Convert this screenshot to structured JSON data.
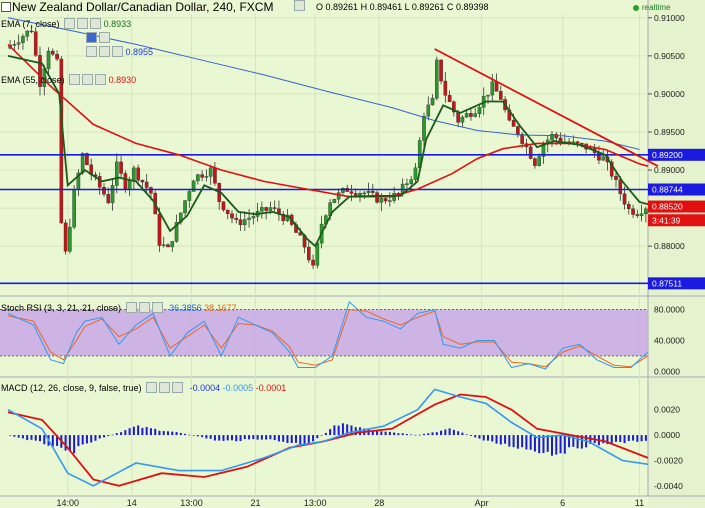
{
  "header": {
    "title": "New Zealand Dollar/Canadian Dollar, 240, FXCM",
    "ohlc": {
      "o_label": "O",
      "o": "0.89261",
      "h_label": "H",
      "h": "0.89461",
      "l_label": "L",
      "l": "0.89261",
      "c_label": "C",
      "c": "0.89398"
    },
    "realtime": "realtime"
  },
  "indicators": {
    "ema7": {
      "label": "EMA (7, close)",
      "value": "0.8933",
      "color": "#1a6d1a"
    },
    "ind2_value": "0.8955",
    "ema55": {
      "label": "EMA (55, close)",
      "value": "0.8930",
      "color": "#e01010"
    },
    "stoch": {
      "label": "Stoch RSI (3, 3, 21, 21, close)",
      "k": "36.3856",
      "d": "38.1677"
    },
    "macd": {
      "label": "MACD (12, 26, close, 9, false, true)",
      "hist": "-0.0004",
      "macd": "-0.0005",
      "signal": "-0.0001"
    }
  },
  "colors": {
    "bull": "#2a9a2a",
    "bear": "#c01818",
    "ema7": "#1a5a1a",
    "ema55": "#e01010",
    "ma": "#3366cc",
    "hline": "#1a1ae0",
    "trend": "#e01010",
    "stochK": "#3399ee",
    "stochD": "#ee6622",
    "band": "#c9a8e8"
  },
  "chart_data": [
    {
      "type": "candlestick",
      "title": "New Zealand Dollar/Canadian Dollar, 240, FXCM",
      "price_axis": {
        "range": [
          0.8745,
          0.9105
        ],
        "ticks": [
          "0.91000",
          "0.90500",
          "0.90000",
          "0.89500",
          "0.89000",
          "0.88500",
          "0.88000"
        ]
      },
      "x_ticks": [
        "14:00",
        "14",
        "13:00",
        "21",
        "13:00",
        "28",
        "Apr",
        "6",
        "11"
      ],
      "x_tick_bars": [
        14,
        29,
        43,
        58,
        72,
        87,
        111,
        130,
        148
      ],
      "bar_count": 150,
      "horizontal_levels": [
        {
          "value": 0.892,
          "label": "0.89200"
        },
        {
          "value": 0.88744,
          "label": "0.88744"
        },
        {
          "value": 0.87511,
          "label": "0.87511"
        }
      ],
      "tags": [
        {
          "value": 0.8852,
          "label": "0.88520",
          "color": "#e01010"
        },
        {
          "value": 0.8834,
          "label": "3:41:39",
          "color": "#e01010"
        }
      ],
      "trendline": [
        {
          "bar": 100,
          "price": 0.9059
        },
        {
          "bar": 150,
          "price": 0.8905
        }
      ],
      "ma_points": [
        [
          0,
          0.91
        ],
        [
          15,
          0.9083
        ],
        [
          30,
          0.9065
        ],
        [
          45,
          0.9045
        ],
        [
          60,
          0.9025
        ],
        [
          75,
          0.9003
        ],
        [
          90,
          0.8982
        ],
        [
          100,
          0.8965
        ],
        [
          110,
          0.8952
        ],
        [
          120,
          0.8946
        ],
        [
          130,
          0.8945
        ],
        [
          140,
          0.8938
        ],
        [
          148,
          0.8927
        ]
      ],
      "price_path": [
        [
          0,
          0.906
        ],
        [
          6,
          0.9085
        ],
        [
          8,
          0.9015
        ],
        [
          10,
          0.906
        ],
        [
          12,
          0.904
        ],
        [
          13,
          0.883
        ],
        [
          14,
          0.879
        ],
        [
          16,
          0.887
        ],
        [
          18,
          0.892
        ],
        [
          20,
          0.8895
        ],
        [
          24,
          0.886
        ],
        [
          26,
          0.8905
        ],
        [
          28,
          0.888
        ],
        [
          30,
          0.89
        ],
        [
          34,
          0.887
        ],
        [
          36,
          0.8805
        ],
        [
          38,
          0.8795
        ],
        [
          42,
          0.886
        ],
        [
          44,
          0.889
        ],
        [
          48,
          0.89
        ],
        [
          50,
          0.886
        ],
        [
          54,
          0.883
        ],
        [
          58,
          0.884
        ],
        [
          62,
          0.885
        ],
        [
          66,
          0.8835
        ],
        [
          70,
          0.88
        ],
        [
          72,
          0.877
        ],
        [
          74,
          0.883
        ],
        [
          76,
          0.886
        ],
        [
          80,
          0.8875
        ],
        [
          84,
          0.887
        ],
        [
          88,
          0.886
        ],
        [
          92,
          0.8868
        ],
        [
          96,
          0.89
        ],
        [
          98,
          0.8975
        ],
        [
          100,
          0.899
        ],
        [
          101,
          0.904
        ],
        [
          103,
          0.9
        ],
        [
          106,
          0.8965
        ],
        [
          110,
          0.898
        ],
        [
          112,
          0.8995
        ],
        [
          114,
          0.901
        ],
        [
          116,
          0.8995
        ],
        [
          118,
          0.896
        ],
        [
          120,
          0.895
        ],
        [
          122,
          0.893
        ],
        [
          124,
          0.891
        ],
        [
          126,
          0.8935
        ],
        [
          128,
          0.8945
        ],
        [
          132,
          0.8935
        ],
        [
          136,
          0.893
        ],
        [
          140,
          0.8915
        ],
        [
          142,
          0.8895
        ],
        [
          144,
          0.887
        ],
        [
          146,
          0.8848
        ],
        [
          148,
          0.8845
        ],
        [
          150,
          0.8852
        ]
      ],
      "ema7_points": [
        [
          0,
          0.905
        ],
        [
          8,
          0.904
        ],
        [
          12,
          0.9
        ],
        [
          14,
          0.888
        ],
        [
          18,
          0.89
        ],
        [
          22,
          0.8885
        ],
        [
          26,
          0.889
        ],
        [
          30,
          0.8885
        ],
        [
          34,
          0.886
        ],
        [
          38,
          0.882
        ],
        [
          42,
          0.884
        ],
        [
          46,
          0.888
        ],
        [
          50,
          0.887
        ],
        [
          54,
          0.8845
        ],
        [
          58,
          0.8842
        ],
        [
          62,
          0.8845
        ],
        [
          66,
          0.8838
        ],
        [
          70,
          0.881
        ],
        [
          72,
          0.88
        ],
        [
          76,
          0.8845
        ],
        [
          80,
          0.8865
        ],
        [
          86,
          0.8866
        ],
        [
          92,
          0.8866
        ],
        [
          96,
          0.8885
        ],
        [
          98,
          0.894
        ],
        [
          102,
          0.8985
        ],
        [
          106,
          0.8975
        ],
        [
          112,
          0.899
        ],
        [
          116,
          0.899
        ],
        [
          120,
          0.8958
        ],
        [
          124,
          0.893
        ],
        [
          128,
          0.8938
        ],
        [
          134,
          0.8933
        ],
        [
          140,
          0.892
        ],
        [
          144,
          0.8885
        ],
        [
          148,
          0.8858
        ],
        [
          150,
          0.8855
        ]
      ],
      "ema55_points": [
        [
          0,
          0.9065
        ],
        [
          10,
          0.901
        ],
        [
          20,
          0.896
        ],
        [
          30,
          0.8935
        ],
        [
          40,
          0.892
        ],
        [
          50,
          0.89
        ],
        [
          60,
          0.8885
        ],
        [
          70,
          0.8875
        ],
        [
          80,
          0.8865
        ],
        [
          90,
          0.8865
        ],
        [
          96,
          0.8875
        ],
        [
          104,
          0.8895
        ],
        [
          110,
          0.8915
        ],
        [
          116,
          0.8928
        ],
        [
          124,
          0.8935
        ],
        [
          132,
          0.8935
        ],
        [
          140,
          0.8927
        ],
        [
          148,
          0.8908
        ],
        [
          150,
          0.8905
        ]
      ]
    },
    {
      "type": "line",
      "title": "Stoch RSI (3, 3, 21, 21, close)",
      "y_ticks": [
        "80.0000",
        "40.0000",
        "0.0000"
      ],
      "ylim": [
        -6,
        95
      ],
      "band": [
        20,
        80
      ],
      "series": [
        {
          "name": "K",
          "points": [
            [
              0,
              75
            ],
            [
              6,
              60
            ],
            [
              10,
              15
            ],
            [
              13,
              10
            ],
            [
              16,
              50
            ],
            [
              18,
              65
            ],
            [
              22,
              70
            ],
            [
              26,
              35
            ],
            [
              30,
              60
            ],
            [
              34,
              75
            ],
            [
              38,
              20
            ],
            [
              42,
              50
            ],
            [
              46,
              65
            ],
            [
              50,
              20
            ],
            [
              54,
              70
            ],
            [
              58,
              60
            ],
            [
              62,
              50
            ],
            [
              66,
              25
            ],
            [
              68,
              5
            ],
            [
              72,
              5
            ],
            [
              76,
              20
            ],
            [
              80,
              90
            ],
            [
              84,
              70
            ],
            [
              88,
              65
            ],
            [
              92,
              55
            ],
            [
              96,
              75
            ],
            [
              100,
              80
            ],
            [
              102,
              35
            ],
            [
              106,
              30
            ],
            [
              110,
              40
            ],
            [
              114,
              40
            ],
            [
              118,
              5
            ],
            [
              122,
              10
            ],
            [
              126,
              3
            ],
            [
              130,
              30
            ],
            [
              134,
              35
            ],
            [
              138,
              15
            ],
            [
              142,
              5
            ],
            [
              146,
              5
            ],
            [
              150,
              25
            ]
          ]
        },
        {
          "name": "D",
          "points": [
            [
              0,
              72
            ],
            [
              6,
              65
            ],
            [
              10,
              25
            ],
            [
              13,
              15
            ],
            [
              16,
              40
            ],
            [
              18,
              58
            ],
            [
              22,
              68
            ],
            [
              26,
              45
            ],
            [
              30,
              55
            ],
            [
              34,
              70
            ],
            [
              38,
              30
            ],
            [
              42,
              45
            ],
            [
              46,
              60
            ],
            [
              50,
              30
            ],
            [
              54,
              62
            ],
            [
              58,
              60
            ],
            [
              62,
              52
            ],
            [
              66,
              32
            ],
            [
              68,
              12
            ],
            [
              72,
              8
            ],
            [
              76,
              15
            ],
            [
              80,
              80
            ],
            [
              84,
              78
            ],
            [
              88,
              68
            ],
            [
              92,
              60
            ],
            [
              96,
              70
            ],
            [
              100,
              78
            ],
            [
              102,
              45
            ],
            [
              106,
              35
            ],
            [
              110,
              38
            ],
            [
              114,
              38
            ],
            [
              118,
              12
            ],
            [
              122,
              10
            ],
            [
              126,
              6
            ],
            [
              130,
              25
            ],
            [
              134,
              33
            ],
            [
              138,
              20
            ],
            [
              142,
              8
            ],
            [
              146,
              6
            ],
            [
              150,
              20
            ]
          ]
        }
      ]
    },
    {
      "type": "bar",
      "title": "MACD (12, 26, close, 9, false, true)",
      "y_ticks": [
        "0.0020",
        "0.0000",
        "-0.0020",
        "-0.0040"
      ],
      "ylim": [
        -0.0048,
        0.0045
      ],
      "histogram_envelope": [
        [
          0,
          0.0
        ],
        [
          10,
          -0.0008
        ],
        [
          14,
          -0.0015
        ],
        [
          20,
          -0.0005
        ],
        [
          30,
          0.0007
        ],
        [
          40,
          0.0002
        ],
        [
          50,
          -0.0005
        ],
        [
          60,
          -0.0003
        ],
        [
          70,
          -0.0008
        ],
        [
          78,
          0.001
        ],
        [
          86,
          0.0004
        ],
        [
          96,
          0.0
        ],
        [
          104,
          0.0005
        ],
        [
          112,
          -0.0005
        ],
        [
          120,
          -0.001
        ],
        [
          128,
          -0.0015
        ],
        [
          136,
          -0.0008
        ],
        [
          144,
          -0.0006
        ],
        [
          150,
          -0.0004
        ]
      ],
      "series": [
        {
          "name": "MACD",
          "points": [
            [
              0,
              0.002
            ],
            [
              8,
              0.0005
            ],
            [
              14,
              -0.003
            ],
            [
              20,
              -0.004
            ],
            [
              30,
              -0.0022
            ],
            [
              40,
              -0.0028
            ],
            [
              50,
              -0.0028
            ],
            [
              60,
              -0.0018
            ],
            [
              68,
              -0.0008
            ],
            [
              74,
              -0.0005
            ],
            [
              80,
              0.0002
            ],
            [
              88,
              0.0007
            ],
            [
              96,
              0.002
            ],
            [
              100,
              0.0036
            ],
            [
              106,
              0.003
            ],
            [
              112,
              0.0025
            ],
            [
              118,
              0.001
            ],
            [
              124,
              -0.0002
            ],
            [
              130,
              0.0
            ],
            [
              136,
              -0.0005
            ],
            [
              144,
              -0.002
            ],
            [
              150,
              -0.0023
            ]
          ]
        },
        {
          "name": "Signal",
          "points": [
            [
              0,
              0.0018
            ],
            [
              8,
              0.0012
            ],
            [
              14,
              -0.001
            ],
            [
              20,
              -0.0035
            ],
            [
              26,
              -0.004
            ],
            [
              36,
              -0.003
            ],
            [
              46,
              -0.0033
            ],
            [
              56,
              -0.0025
            ],
            [
              66,
              -0.001
            ],
            [
              74,
              -0.0005
            ],
            [
              82,
              0.0002
            ],
            [
              90,
              0.0005
            ],
            [
              100,
              0.0024
            ],
            [
              106,
              0.0032
            ],
            [
              112,
              0.003
            ],
            [
              118,
              0.002
            ],
            [
              124,
              0.0005
            ],
            [
              132,
              0.0
            ],
            [
              140,
              -0.0005
            ],
            [
              150,
              -0.0018
            ]
          ]
        }
      ]
    }
  ]
}
